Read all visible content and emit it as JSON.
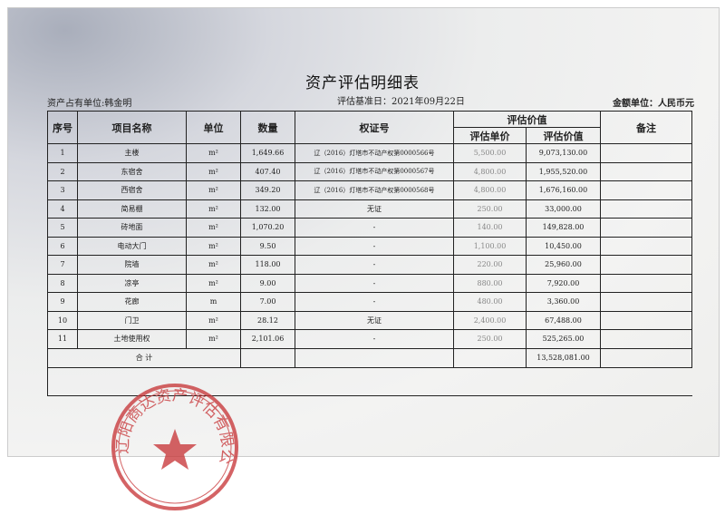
{
  "title": "资产评估明细表",
  "valuation_date": "评估基准日：2021年09月22日",
  "owner": "资产占有单位:韩金明",
  "currency": "金额单位：人民币元",
  "headers": {
    "no": "序号",
    "name": "项目名称",
    "unit": "单位",
    "qty": "数量",
    "cert": "权证号",
    "group": "评估价值",
    "unit_price": "评估单价",
    "value": "评估价值",
    "note": "备注"
  },
  "rows": [
    {
      "no": "1",
      "name": "主楼",
      "unit": "m²",
      "qty": "1,649.66",
      "cert": "辽（2016）灯塔市不动产权第0000566号",
      "price": "5,500.00",
      "value": "9,073,130.00"
    },
    {
      "no": "2",
      "name": "东宿舍",
      "unit": "m²",
      "qty": "407.40",
      "cert": "辽（2016）灯塔市不动产权第0000567号",
      "price": "4,800.00",
      "value": "1,955,520.00"
    },
    {
      "no": "3",
      "name": "西宿舍",
      "unit": "m²",
      "qty": "349.20",
      "cert": "辽（2016）灯塔市不动产权第0000568号",
      "price": "4,800.00",
      "value": "1,676,160.00"
    },
    {
      "no": "4",
      "name": "简易棚",
      "unit": "m²",
      "qty": "132.00",
      "cert": "无证",
      "price": "250.00",
      "value": "33,000.00"
    },
    {
      "no": "5",
      "name": "砖地面",
      "unit": "m²",
      "qty": "1,070.20",
      "cert": "-",
      "price": "140.00",
      "value": "149,828.00"
    },
    {
      "no": "6",
      "name": "电动大门",
      "unit": "m²",
      "qty": "9.50",
      "cert": "-",
      "price": "1,100.00",
      "value": "10,450.00"
    },
    {
      "no": "7",
      "name": "院墙",
      "unit": "m²",
      "qty": "118.00",
      "cert": "-",
      "price": "220.00",
      "value": "25,960.00"
    },
    {
      "no": "8",
      "name": "凉亭",
      "unit": "m²",
      "qty": "9.00",
      "cert": "-",
      "price": "880.00",
      "value": "7,920.00"
    },
    {
      "no": "9",
      "name": "花廊",
      "unit": "m",
      "qty": "7.00",
      "cert": "-",
      "price": "480.00",
      "value": "3,360.00"
    },
    {
      "no": "10",
      "name": "门卫",
      "unit": "m²",
      "qty": "28.12",
      "cert": "无证",
      "price": "2,400.00",
      "value": "67,488.00"
    },
    {
      "no": "11",
      "name": "土地使用权",
      "unit": "m²",
      "qty": "2,101.06",
      "cert": "-",
      "price": "250.00",
      "value": "525,265.00"
    }
  ],
  "total": {
    "label": "合 计",
    "value": "13,528,081.00"
  },
  "stamp": {
    "text": "辽阳商达资产评估有限公司",
    "color": "#c8383a"
  }
}
